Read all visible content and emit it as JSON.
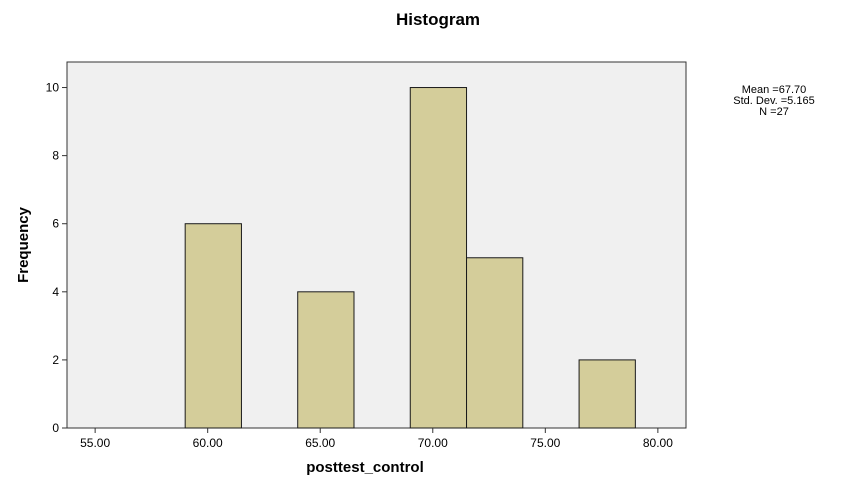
{
  "chart_data": {
    "type": "bar",
    "title": "Histogram",
    "xlabel": "posttest_control",
    "ylabel": "Frequency",
    "xlim": [
      53.75,
      81.25
    ],
    "ylim": [
      0,
      10.75
    ],
    "x_ticks": [
      55,
      60,
      65,
      70,
      75,
      80
    ],
    "x_tick_labels": [
      "55.00",
      "60.00",
      "65.00",
      "70.00",
      "75.00",
      "80.00"
    ],
    "y_ticks": [
      0,
      2,
      4,
      6,
      8,
      10
    ],
    "y_tick_labels": [
      "0",
      "2",
      "4",
      "6",
      "8",
      "10"
    ],
    "bin_width": 2.5,
    "bins": [
      {
        "start": 59,
        "end": 61.5,
        "count": 6
      },
      {
        "start": 64,
        "end": 66.5,
        "count": 4
      },
      {
        "start": 69,
        "end": 71.5,
        "count": 10
      },
      {
        "start": 71.5,
        "end": 74,
        "count": 5
      },
      {
        "start": 76.5,
        "end": 79,
        "count": 2
      }
    ],
    "stats": {
      "mean": "Mean =67.70",
      "std_dev": "Std. Dev. =5.165",
      "n": "N =27"
    },
    "grid": false,
    "legend": "none",
    "colors": {
      "bar_fill": "#d4cd9a",
      "bar_stroke": "#1a1a1a",
      "plot_background": "#f0f0f0",
      "plot_border": "#333333"
    }
  }
}
